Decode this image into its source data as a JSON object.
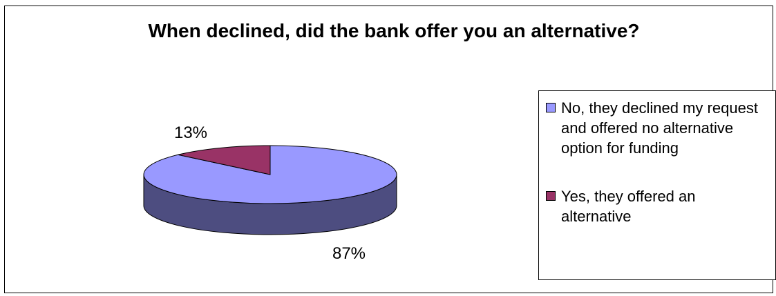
{
  "chart_data": {
    "type": "pie",
    "title": "When declined, did the bank offer you an alternative?",
    "categories": [
      "No, they declined my request and offered no alternative option for funding",
      "Yes, they offered an alternative"
    ],
    "values": [
      87,
      13
    ],
    "data_labels": [
      "87%",
      "13%"
    ],
    "colors": {
      "top": [
        "#9999ff",
        "#993366"
      ],
      "side": [
        "#4d4d80",
        "#4d1a33"
      ]
    },
    "legend_placement": "right"
  }
}
